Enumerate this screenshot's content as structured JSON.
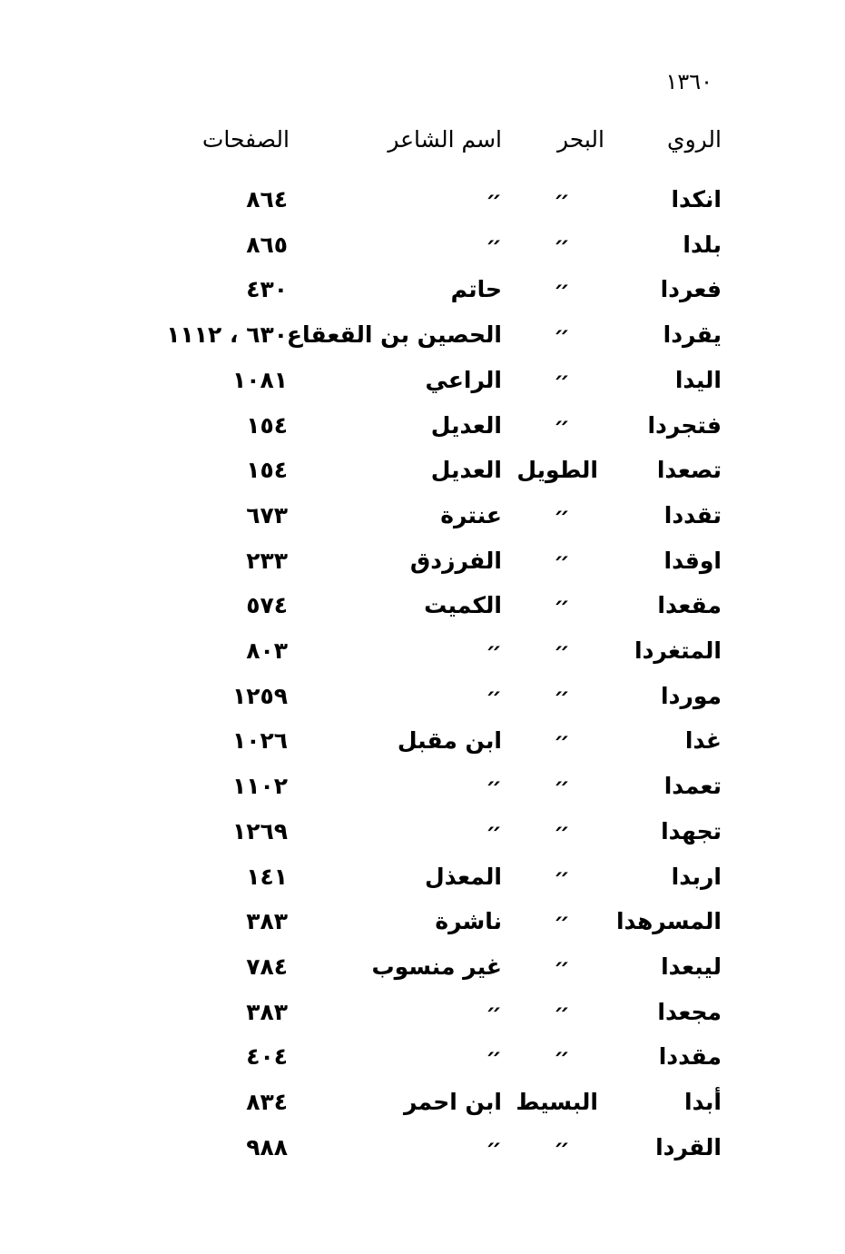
{
  "page_number": "١٣٦٠",
  "headers": {
    "rawi": "الروي",
    "bahr": "البحر",
    "poet": "اسم الشاعر",
    "pages": "الصفحات"
  },
  "ditto": "״",
  "rows": [
    {
      "rawi": "انكدا",
      "bahr": "״",
      "poet": "״",
      "pages": "٨٦٤"
    },
    {
      "rawi": "بلدا",
      "bahr": "״",
      "poet": "״",
      "pages": "٨٦٥"
    },
    {
      "rawi": "فعردا",
      "bahr": "״",
      "poet": "حاتم",
      "pages": "٤٣٠"
    },
    {
      "rawi": "يقردا",
      "bahr": "״",
      "poet": "الحصين بن القعقاع",
      "pages": "٦٣٠ ، ١١١٢"
    },
    {
      "rawi": "اليدا",
      "bahr": "״",
      "poet": "الراعي",
      "pages": "١٠٨١"
    },
    {
      "rawi": "فتجردا",
      "bahr": "״",
      "poet": "العديل",
      "pages": "١٥٤"
    },
    {
      "rawi": "تصعدا",
      "bahr": "الطويل",
      "poet": "العديل",
      "pages": "١٥٤"
    },
    {
      "rawi": "تقددا",
      "bahr": "״",
      "poet": "عنترة",
      "pages": "٦٧٣"
    },
    {
      "rawi": "اوقدا",
      "bahr": "״",
      "poet": "الفرزدق",
      "pages": "٢٣٣"
    },
    {
      "rawi": "مقعدا",
      "bahr": "״",
      "poet": "الكميت",
      "pages": "٥٧٤"
    },
    {
      "rawi": "المتغردا",
      "bahr": "״",
      "poet": "״",
      "pages": "٨٠٣"
    },
    {
      "rawi": "موردا",
      "bahr": "״",
      "poet": "״",
      "pages": "١٢٥٩"
    },
    {
      "rawi": "غدا",
      "bahr": "״",
      "poet": "ابن مقبل",
      "pages": "١٠٢٦"
    },
    {
      "rawi": "تعمدا",
      "bahr": "״",
      "poet": "״",
      "pages": "١١٠٢"
    },
    {
      "rawi": "تجهدا",
      "bahr": "״",
      "poet": "״",
      "pages": "١٢٦٩"
    },
    {
      "rawi": "اربدا",
      "bahr": "״",
      "poet": "المعذل",
      "pages": "١٤١"
    },
    {
      "rawi": "المسرهدا",
      "bahr": "״",
      "poet": "ناشرة",
      "pages": "٣٨٣"
    },
    {
      "rawi": "ليبعدا",
      "bahr": "״",
      "poet": "غير منسوب",
      "pages": "٧٨٤"
    },
    {
      "rawi": "مجعدا",
      "bahr": "״",
      "poet": "״",
      "pages": "٣٨٣"
    },
    {
      "rawi": "مقددا",
      "bahr": "״",
      "poet": "״",
      "pages": "٤٠٤"
    },
    {
      "rawi": "أبدا",
      "bahr": "البسيط",
      "poet": "ابن احمر",
      "pages": "٨٣٤"
    },
    {
      "rawi": "القردا",
      "bahr": "״",
      "poet": "״",
      "pages": "٩٨٨"
    }
  ]
}
